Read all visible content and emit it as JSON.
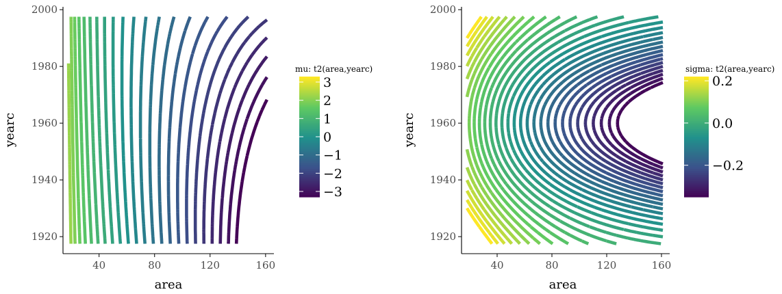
{
  "chart_data": [
    {
      "type": "contour",
      "xlabel": "area",
      "ylabel": "yearc",
      "xlim": [
        14,
        166
      ],
      "ylim": [
        1914,
        2001
      ],
      "x_ticks": [
        40,
        80,
        120,
        160
      ],
      "y_ticks": [
        1920,
        1940,
        1960,
        1980,
        2000
      ],
      "x_tick_labels": [
        "40",
        "80",
        "120",
        "160"
      ],
      "y_tick_labels": [
        "1920",
        "1940",
        "1960",
        "1980",
        "2000"
      ],
      "legend_title": "mu: t2(area,yearc)",
      "legend_range": [
        -3.3,
        3.3
      ],
      "legend_ticks": [
        3,
        2,
        1,
        0,
        -1,
        -2,
        -3
      ],
      "legend_tick_labels": [
        "3",
        "2",
        "1",
        "0",
        "−1",
        "−2",
        "−3"
      ],
      "legend_placement": "right",
      "grid": false,
      "colormap": "viridis",
      "colors": [
        "#440154",
        "#3b528b",
        "#21918c",
        "#5ec962",
        "#fde725"
      ],
      "level_step": 0.25
    },
    {
      "type": "contour",
      "xlabel": "area",
      "ylabel": "yearc",
      "xlim": [
        14,
        166
      ],
      "ylim": [
        1914,
        2001
      ],
      "x_ticks": [
        40,
        80,
        120,
        160
      ],
      "y_ticks": [
        1920,
        1940,
        1960,
        1980,
        2000
      ],
      "x_tick_labels": [
        "40",
        "80",
        "120",
        "160"
      ],
      "y_tick_labels": [
        "1920",
        "1940",
        "1960",
        "1980",
        "2000"
      ],
      "legend_title": "sigma: t2(area,yearc)",
      "legend_range": [
        -0.35,
        0.22
      ],
      "legend_ticks": [
        0.2,
        0.0,
        -0.2
      ],
      "legend_tick_labels": [
        "0.2",
        "0.0",
        "−0.2"
      ],
      "legend_placement": "right",
      "grid": false,
      "colormap": "viridis",
      "colors": [
        "#440154",
        "#3b528b",
        "#21918c",
        "#5ec962",
        "#fde725"
      ],
      "level_step": 0.02
    }
  ]
}
